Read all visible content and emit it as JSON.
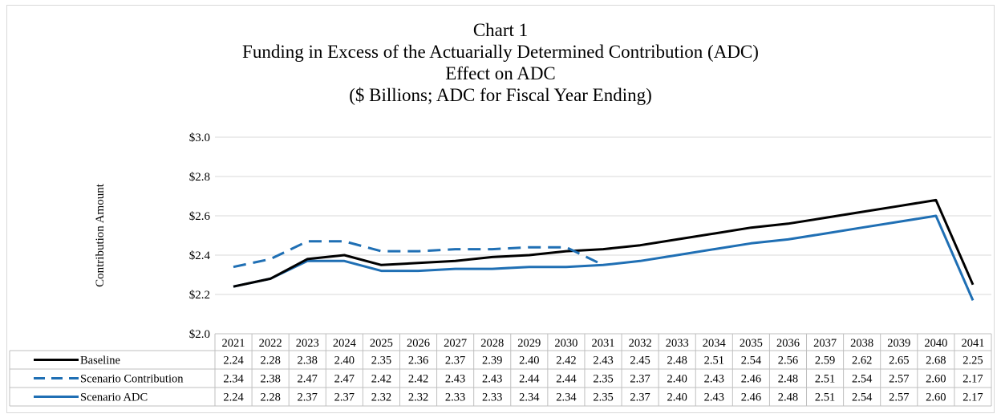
{
  "chart_data": {
    "type": "line",
    "title_lines": [
      "Chart 1",
      "Funding in Excess of the Actuarially Determined Contribution (ADC)",
      "Effect on ADC",
      "($ Billions; ADC for Fiscal Year Ending)"
    ],
    "ylabel": "Contribution Amount",
    "xlabel": "",
    "ylim": [
      2.0,
      3.0
    ],
    "y_ticks": [
      2.0,
      2.2,
      2.4,
      2.6,
      2.8,
      3.0
    ],
    "y_tick_labels": [
      "$2.0",
      "$2.2",
      "$2.4",
      "$2.6",
      "$2.8",
      "$3.0"
    ],
    "grid": true,
    "legend": "data-table",
    "categories": [
      "2021",
      "2022",
      "2023",
      "2024",
      "2025",
      "2026",
      "2027",
      "2028",
      "2029",
      "2030",
      "2031",
      "2032",
      "2033",
      "2034",
      "2035",
      "2036",
      "2037",
      "2038",
      "2039",
      "2040",
      "2041"
    ],
    "series": [
      {
        "name": "Baseline",
        "color": "#000000",
        "style": "solid",
        "values": [
          2.24,
          2.28,
          2.38,
          2.4,
          2.35,
          2.36,
          2.37,
          2.39,
          2.4,
          2.42,
          2.43,
          2.45,
          2.48,
          2.51,
          2.54,
          2.56,
          2.59,
          2.62,
          2.65,
          2.68,
          2.25
        ],
        "labels": [
          "2.24",
          "2.28",
          "2.38",
          "2.40",
          "2.35",
          "2.36",
          "2.37",
          "2.39",
          "2.40",
          "2.42",
          "2.43",
          "2.45",
          "2.48",
          "2.51",
          "2.54",
          "2.56",
          "2.59",
          "2.62",
          "2.65",
          "2.68",
          "2.25"
        ]
      },
      {
        "name": "Scenario Contribution",
        "color": "#1f6fb4",
        "style": "dashed",
        "values": [
          2.34,
          2.38,
          2.47,
          2.47,
          2.42,
          2.42,
          2.43,
          2.43,
          2.44,
          2.44,
          2.35,
          2.37,
          2.4,
          2.43,
          2.46,
          2.48,
          2.51,
          2.54,
          2.57,
          2.6,
          2.17
        ],
        "labels": [
          "2.34",
          "2.38",
          "2.47",
          "2.47",
          "2.42",
          "2.42",
          "2.43",
          "2.43",
          "2.44",
          "2.44",
          "2.35",
          "2.37",
          "2.40",
          "2.43",
          "2.46",
          "2.48",
          "2.51",
          "2.54",
          "2.57",
          "2.60",
          "2.17"
        ]
      },
      {
        "name": "Scenario ADC",
        "color": "#1f6fb4",
        "style": "solid",
        "values": [
          2.24,
          2.28,
          2.37,
          2.37,
          2.32,
          2.32,
          2.33,
          2.33,
          2.34,
          2.34,
          2.35,
          2.37,
          2.4,
          2.43,
          2.46,
          2.48,
          2.51,
          2.54,
          2.57,
          2.6,
          2.17
        ],
        "labels": [
          "2.24",
          "2.28",
          "2.37",
          "2.37",
          "2.32",
          "2.32",
          "2.33",
          "2.33",
          "2.34",
          "2.34",
          "2.35",
          "2.37",
          "2.40",
          "2.43",
          "2.46",
          "2.48",
          "2.51",
          "2.54",
          "2.57",
          "2.60",
          "2.17"
        ]
      }
    ],
    "dashed_visible_until_index": 10
  }
}
